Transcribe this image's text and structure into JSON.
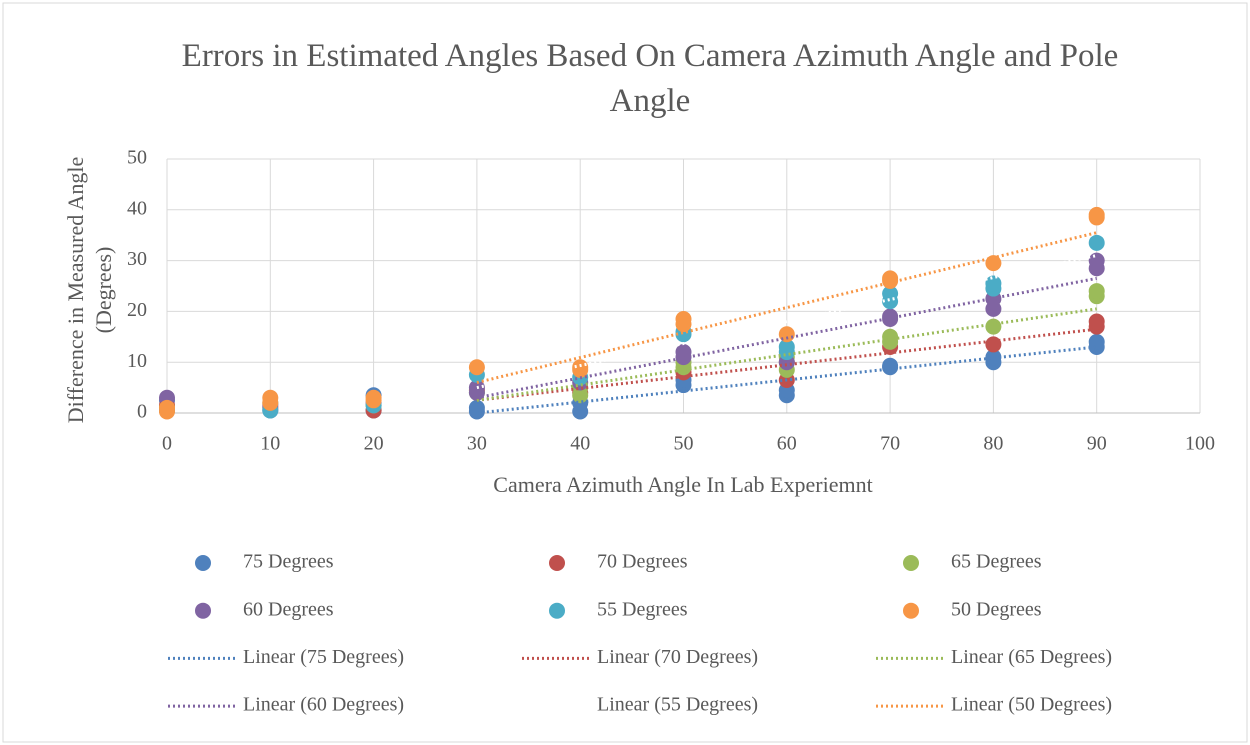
{
  "chart_data": {
    "type": "scatter",
    "title": "Errors in Estimated Angles Based On Camera Azimuth Angle and Pole Angle",
    "x_label": "Camera Azimuth Angle In Lab Experiemnt",
    "y_label": "Difference in Measured Angle (Degrees)",
    "xlim": [
      0,
      100
    ],
    "xticks": [
      0,
      10,
      20,
      30,
      40,
      50,
      60,
      70,
      80,
      90,
      100
    ],
    "ylim": [
      0,
      50
    ],
    "yticks": [
      0,
      10,
      20,
      30,
      40,
      50
    ],
    "grid": true,
    "legend": "bottom",
    "series": [
      {
        "name": "75 Degrees",
        "color": "#4f81bd",
        "x": [
          0,
          0,
          10,
          20,
          20,
          30,
          30,
          40,
          40,
          50,
          50,
          60,
          60,
          70,
          70,
          80,
          80,
          90,
          90
        ],
        "values": [
          2.5,
          0.5,
          0.5,
          3.5,
          0.5,
          1,
          0.3,
          0.3,
          2,
          5.5,
          6.5,
          3.5,
          4.5,
          9,
          9.3,
          10,
          11,
          13,
          14
        ]
      },
      {
        "name": "70 Degrees",
        "color": "#c0504d",
        "x": [
          0,
          10,
          20,
          30,
          40,
          50,
          60,
          60,
          70,
          80,
          90,
          90
        ],
        "values": [
          1.5,
          1,
          0.5,
          4.5,
          4,
          8,
          6.5,
          10,
          13,
          13.5,
          17,
          18
        ]
      },
      {
        "name": "65 Degrees",
        "color": "#9bbb59",
        "x": [
          0,
          10,
          20,
          30,
          40,
          40,
          50,
          50,
          60,
          60,
          70,
          70,
          80,
          90,
          90
        ],
        "values": [
          1,
          2,
          1.5,
          4,
          3.5,
          5,
          9,
          10,
          8.5,
          11,
          14,
          15,
          17,
          23,
          24
        ]
      },
      {
        "name": "60 Degrees",
        "color": "#8064a2",
        "x": [
          0,
          10,
          20,
          30,
          30,
          40,
          50,
          50,
          60,
          70,
          70,
          80,
          80,
          90,
          90
        ],
        "values": [
          3,
          1.5,
          2,
          5,
          4,
          6,
          11,
          12,
          10,
          18.5,
          19,
          20.5,
          22.5,
          28.5,
          30
        ]
      },
      {
        "name": "55 Degrees",
        "color": "#4bacc6",
        "x": [
          0,
          10,
          20,
          30,
          40,
          50,
          50,
          60,
          60,
          70,
          70,
          80,
          80,
          90
        ],
        "values": [
          0.5,
          0.5,
          1.5,
          7.5,
          7,
          15.5,
          16,
          12,
          13,
          22,
          23.5,
          24.5,
          25.5,
          33.5
        ]
      },
      {
        "name": "50 Degrees",
        "color": "#f79646",
        "x": [
          0,
          0,
          10,
          10,
          20,
          20,
          30,
          40,
          40,
          50,
          50,
          60,
          70,
          70,
          80,
          90,
          90
        ],
        "values": [
          1,
          0.3,
          3,
          2,
          3,
          2.5,
          9,
          9,
          8.5,
          17.5,
          18.5,
          15.5,
          26.5,
          26,
          29.5,
          38.5,
          39
        ]
      }
    ],
    "trendlines": [
      {
        "name": "Linear (75 Degrees)",
        "color": "#4f81bd",
        "x": [
          30,
          90
        ],
        "values": [
          0,
          13
        ]
      },
      {
        "name": "Linear (70 Degrees)",
        "color": "#c0504d",
        "x": [
          30,
          90
        ],
        "values": [
          2.5,
          16.5
        ]
      },
      {
        "name": "Linear (65 Degrees)",
        "color": "#9bbb59",
        "x": [
          30,
          90
        ],
        "values": [
          2.5,
          20.5
        ]
      },
      {
        "name": "Linear (60 Degrees)",
        "color": "#8064a2",
        "x": [
          30,
          90
        ],
        "values": [
          3,
          26.5
        ]
      },
      {
        "name": "Linear (55 Degrees)",
        "color": "#ffffff",
        "x": [
          30,
          90
        ],
        "values": [
          5,
          31
        ]
      },
      {
        "name": "Linear (50 Degrees)",
        "color": "#f79646",
        "x": [
          30,
          90
        ],
        "values": [
          6,
          35.5
        ]
      }
    ]
  }
}
